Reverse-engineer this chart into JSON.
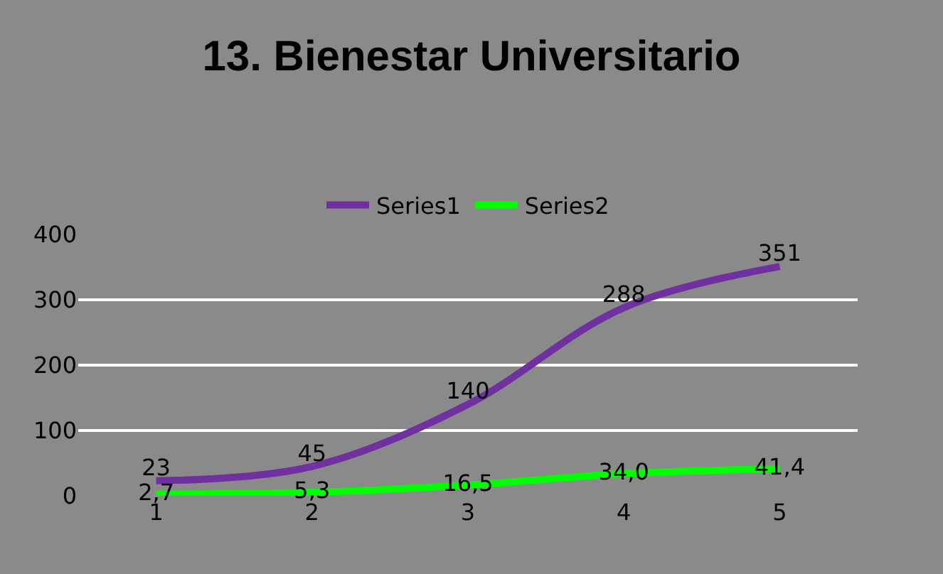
{
  "chart_data": {
    "type": "line",
    "title": "13. Bienestar Universitario",
    "categories": [
      "1",
      "2",
      "3",
      "4",
      "5"
    ],
    "series": [
      {
        "name": "Series1",
        "color": "#7030a0",
        "values": [
          23,
          45,
          140,
          288,
          351
        ],
        "value_labels": [
          "23",
          "45",
          "140",
          "288",
          "351"
        ]
      },
      {
        "name": "Series2",
        "color": "#00ff00",
        "values": [
          2.7,
          5.3,
          16.5,
          34.0,
          41.4
        ],
        "value_labels": [
          "2,7",
          "5,3",
          "16,5",
          "34,0",
          "41,4"
        ]
      }
    ],
    "ylim": [
      0,
      400
    ],
    "yticks": [
      0,
      100,
      200,
      300,
      400
    ],
    "grid": "y",
    "legend": "top",
    "marker": "none",
    "line_style": "solid"
  }
}
